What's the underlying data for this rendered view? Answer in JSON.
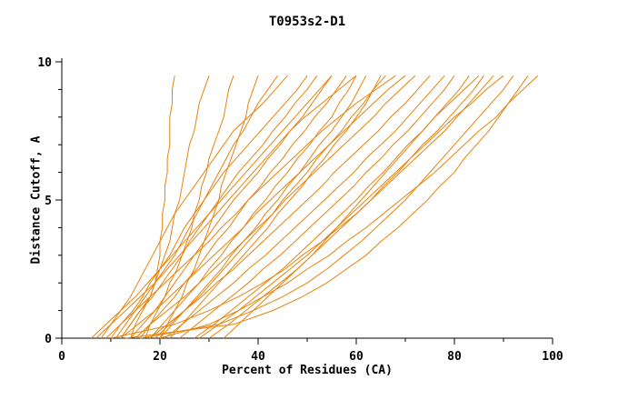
{
  "chart_data": {
    "type": "line",
    "title": "T0953s2-D1",
    "xlabel": "Percent of Residues (CA)",
    "ylabel": "Distance Cutoff, A",
    "xlim": [
      0,
      100
    ],
    "ylim": [
      0,
      10
    ],
    "x_major_ticks": [
      0,
      20,
      40,
      60,
      80,
      100
    ],
    "x_minor_tick_step": 10,
    "y_major_ticks": [
      0,
      5,
      10
    ],
    "y_minor_tick_step": 1,
    "grid": false,
    "legend": "none",
    "line_color": "#e8830c",
    "axis_color": "#000000",
    "text_color": "#000000",
    "background_color": "#ffffff",
    "y_grid": [
      0,
      0.5,
      1,
      1.5,
      2,
      2.5,
      3,
      3.5,
      4,
      4.5,
      5,
      5.5,
      6,
      6.5,
      7,
      7.5,
      8,
      8.5,
      9,
      9.5
    ],
    "series": [
      [
        12,
        14,
        16,
        18,
        19,
        19.5,
        20,
        20,
        20.5,
        20.5,
        21,
        21,
        21.5,
        21.5,
        22,
        22,
        22,
        22.5,
        22.5,
        23
      ],
      [
        14,
        15,
        16.5,
        18,
        19,
        20,
        21,
        22,
        22.5,
        23,
        24,
        24.5,
        25,
        25.5,
        26,
        27,
        27.5,
        28,
        29,
        30
      ],
      [
        17,
        18,
        19.5,
        21,
        22,
        23.5,
        24.5,
        25.5,
        26.5,
        27,
        28,
        28.5,
        29.5,
        30,
        31,
        32,
        33,
        33.5,
        34,
        35
      ],
      [
        20,
        21.5,
        23,
        24.5,
        25.5,
        27,
        28,
        29,
        30,
        31,
        32,
        32.5,
        33.5,
        34.5,
        35.5,
        36.5,
        37.5,
        38,
        39,
        40
      ],
      [
        8,
        10,
        12,
        14,
        15.5,
        17,
        18.5,
        20,
        21.5,
        23,
        25,
        27,
        29,
        31,
        33,
        35,
        38,
        41,
        43.5,
        46
      ],
      [
        10,
        12,
        14.5,
        16.5,
        18,
        20,
        22,
        23.5,
        25,
        27,
        29,
        31,
        33,
        35.5,
        38,
        40.5,
        43,
        45.5,
        48,
        50
      ],
      [
        12,
        14,
        16,
        18.5,
        20.5,
        22.5,
        24.5,
        26,
        28,
        30,
        32,
        34,
        36,
        38.5,
        41,
        43,
        45.5,
        47.5,
        50,
        52
      ],
      [
        14,
        16.5,
        19,
        21,
        23,
        25,
        27,
        29,
        31,
        33,
        35,
        37.5,
        40,
        42,
        44.5,
        46.5,
        49,
        51,
        53,
        55
      ],
      [
        16,
        18,
        20.5,
        23,
        25,
        27.5,
        29.5,
        31.5,
        34,
        36,
        38,
        40.5,
        42.5,
        45,
        47,
        49.5,
        51.5,
        54,
        56,
        58
      ],
      [
        18,
        20.5,
        23,
        25.5,
        28,
        30,
        32.5,
        34.5,
        37,
        39,
        41.5,
        43.5,
        46,
        48,
        50.5,
        52.5,
        55,
        56.5,
        58.5,
        60
      ],
      [
        20,
        22.5,
        25,
        27.5,
        30,
        32.5,
        34.5,
        37,
        39.5,
        41.5,
        44,
        46,
        48.5,
        50.5,
        52.5,
        55,
        57,
        59,
        60.5,
        62
      ],
      [
        22,
        24.5,
        27,
        29.5,
        32,
        34.5,
        37,
        39.5,
        42,
        44,
        46.5,
        49,
        51,
        53.5,
        55.5,
        58,
        60,
        62,
        63.5,
        65
      ],
      [
        6,
        9,
        12,
        15,
        17.5,
        20,
        22.5,
        25,
        27.5,
        30,
        32.5,
        35,
        37.5,
        40,
        42.5,
        45,
        47.5,
        50,
        52.5,
        55
      ],
      [
        9,
        12,
        15,
        18,
        21,
        24,
        27,
        30,
        32.5,
        35.5,
        38,
        41,
        44,
        47,
        50,
        53,
        56.5,
        60,
        64,
        68
      ],
      [
        12,
        15.5,
        19,
        22,
        25,
        28,
        31,
        34,
        37,
        39.5,
        42.5,
        45.5,
        48.5,
        51.5,
        54.5,
        57.5,
        60.5,
        63.5,
        66.5,
        70
      ],
      [
        15,
        18,
        21.5,
        25,
        28,
        31,
        34,
        37,
        40,
        43,
        45.5,
        48.5,
        51.5,
        54.5,
        57.5,
        60.5,
        63.5,
        66,
        69,
        72
      ],
      [
        18,
        21.5,
        25,
        28.5,
        31.5,
        35,
        38,
        41,
        44,
        47,
        50,
        53,
        55.5,
        58.5,
        61.5,
        64.5,
        67,
        70,
        72.5,
        75
      ],
      [
        21,
        24.5,
        28,
        31.5,
        35,
        38,
        41.5,
        44.5,
        47.5,
        50.5,
        53.5,
        56.5,
        59.5,
        62,
        65,
        68,
        70.5,
        73,
        75.5,
        78
      ],
      [
        24,
        27.5,
        31,
        34.5,
        38,
        41,
        44.5,
        47.5,
        50.5,
        53.5,
        56.5,
        59.5,
        62,
        65,
        67.5,
        70.5,
        73,
        75.5,
        78,
        80
      ],
      [
        27,
        31,
        34.5,
        38,
        41.5,
        45,
        48,
        51,
        54,
        57,
        60,
        62.5,
        65.5,
        68,
        70.5,
        73.5,
        76,
        78.5,
        81,
        83
      ],
      [
        30,
        34,
        37.5,
        41,
        44.5,
        48,
        51,
        54,
        57,
        60,
        63,
        65.5,
        68.5,
        71,
        73.5,
        76.5,
        79,
        81.5,
        84,
        86
      ],
      [
        10,
        23,
        30,
        36,
        41,
        45.5,
        49,
        53,
        56.5,
        60,
        63,
        66,
        69,
        72,
        75,
        78,
        80.5,
        83,
        85.5,
        88
      ],
      [
        13,
        35,
        43,
        49,
        54,
        58,
        62,
        65,
        68.5,
        71.5,
        74.5,
        77,
        80,
        82,
        84.5,
        87,
        89,
        91,
        93,
        95
      ],
      [
        16,
        32,
        39,
        45,
        50,
        54,
        57.5,
        61,
        64,
        67,
        70,
        72.5,
        75,
        77.5,
        80,
        82.5,
        85,
        87.5,
        90,
        92
      ],
      [
        20,
        30,
        36,
        41,
        46,
        50,
        54.5,
        58,
        62,
        65.5,
        69,
        72.5,
        76,
        79,
        82,
        85,
        88.5,
        91,
        94,
        97
      ],
      [
        7,
        10,
        13,
        16,
        19,
        21.5,
        24,
        26.5,
        29,
        31.5,
        34,
        36.5,
        39,
        41.5,
        44,
        46.5,
        49.5,
        53,
        56.5,
        60
      ],
      [
        11,
        13,
        15,
        17,
        19,
        21,
        23,
        24.5,
        26,
        27.5,
        29,
        30.5,
        32,
        33.5,
        35,
        37,
        38.5,
        40,
        42,
        44
      ],
      [
        19,
        22,
        25,
        28,
        30.5,
        33,
        35.5,
        38,
        40.5,
        43,
        45,
        47.5,
        50,
        52,
        54.5,
        57,
        59,
        61.5,
        63.5,
        66
      ],
      [
        28,
        32,
        36,
        39.5,
        43,
        46.5,
        50,
        53,
        56,
        59,
        62,
        65,
        68,
        71,
        74,
        77,
        80,
        83.5,
        86.5,
        90
      ],
      [
        33,
        36,
        39,
        42,
        45,
        48,
        51,
        53.5,
        56,
        58.5,
        61,
        63.5,
        66,
        68.5,
        71,
        73.5,
        76,
        79,
        82,
        85
      ]
    ]
  }
}
